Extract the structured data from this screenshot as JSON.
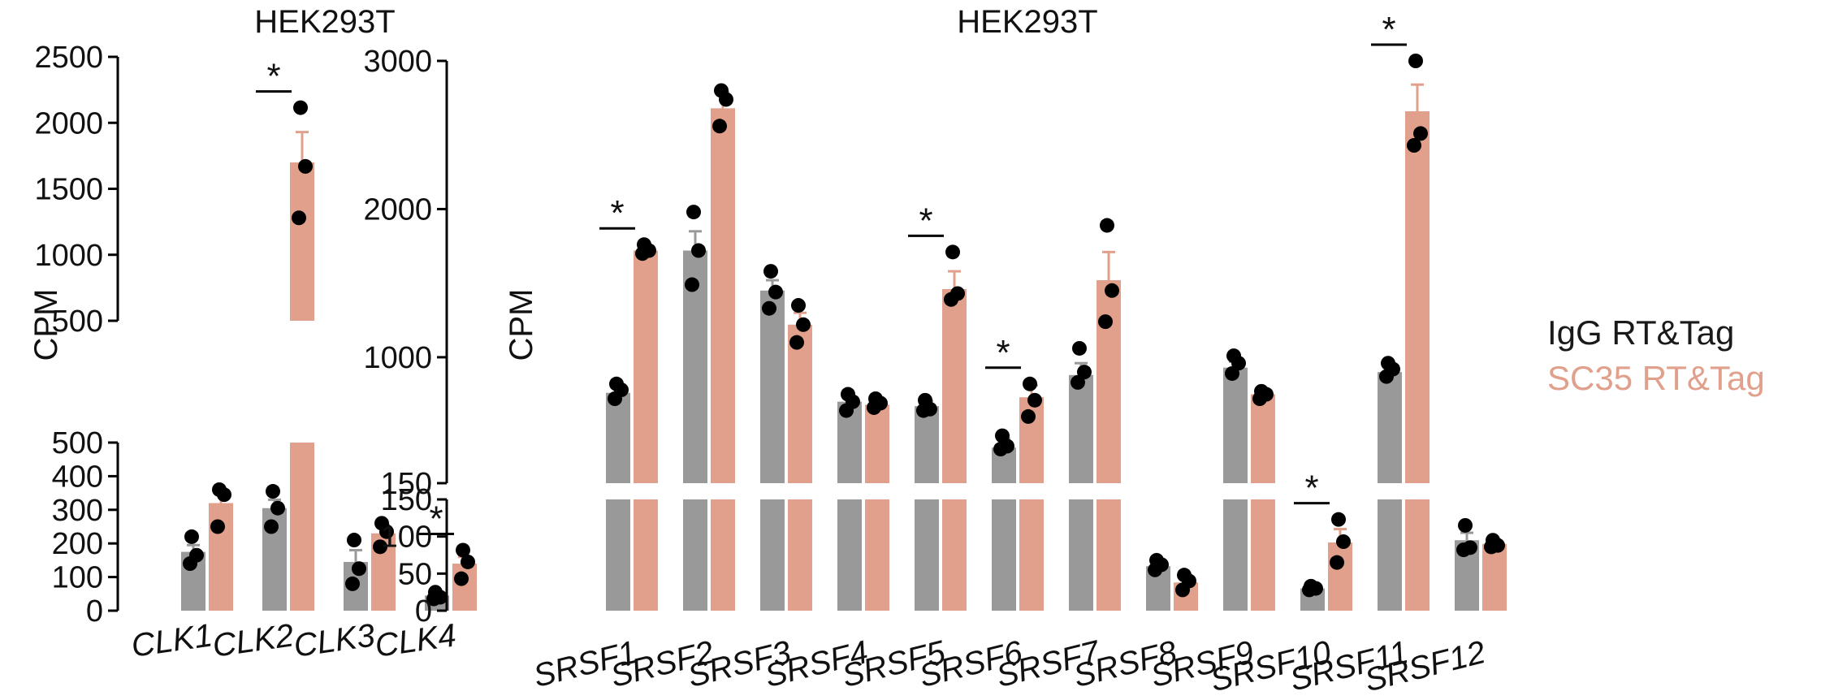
{
  "colors": {
    "igg": "#999999",
    "sc35": "#e0a08b",
    "dot": "#000000",
    "axis": "#000000"
  },
  "legend": {
    "igg_label": "IgG RT&Tag",
    "sc35_label": "SC35 RT&Tag"
  },
  "chart_data": [
    {
      "type": "bar",
      "title": "HEK293T",
      "ylabel": "CPM",
      "broken_axis": true,
      "lower_range": [
        0,
        500
      ],
      "upper_range": [
        500,
        2500
      ],
      "lower_ticks": [
        "0",
        "100",
        "200",
        "300",
        "400",
        "500"
      ],
      "upper_ticks": [
        "500",
        "1000",
        "1500",
        "2000",
        "2500"
      ],
      "categories": [
        "CLK1",
        "CLK2",
        "CLK3",
        "CLK4"
      ],
      "series": [
        {
          "name": "IgG RT&Tag",
          "values": [
            175,
            305,
            145,
            45
          ],
          "errors": [
            20,
            25,
            35,
            5
          ],
          "points": [
            [
              220,
              165,
              140
            ],
            [
              355,
              305,
              250
            ],
            [
              210,
              125,
              80
            ],
            [
              55,
              40,
              35
            ]
          ]
        },
        {
          "name": "SC35 RT&Tag",
          "values": [
            320,
            1700,
            230,
            140
          ],
          "errors": [
            30,
            230,
            25,
            20
          ],
          "points": [
            [
              360,
              345,
              250
            ],
            [
              2115,
              1670,
              1280
            ],
            [
              260,
              235,
              190
            ],
            [
              180,
              145,
              95
            ]
          ]
        }
      ],
      "significance": [
        "",
        "*",
        "",
        "*"
      ]
    },
    {
      "type": "bar",
      "title": "HEK293T",
      "ylabel": "CPM",
      "broken_axis": true,
      "lower_range": [
        0,
        150
      ],
      "upper_range": [
        150,
        3000
      ],
      "lower_ticks": [
        "0",
        "50",
        "100",
        "150"
      ],
      "upper_ticks": [
        "150",
        "1000",
        "2000",
        "3000"
      ],
      "categories": [
        "SRSF1",
        "SRSF2",
        "SRSF3",
        "SRSF4",
        "SRSF5",
        "SRSF6",
        "SRSF7",
        "SRSF8",
        "SRSF9",
        "SRSF10",
        "SRSF11",
        "SRSF12"
      ],
      "series": [
        {
          "name": "IgG RT&Tag",
          "values": [
            760,
            1720,
            1450,
            700,
            670,
            390,
            880,
            60,
            930,
            30,
            900,
            95
          ],
          "errors": [
            40,
            130,
            70,
            35,
            35,
            60,
            80,
            5,
            40,
            3,
            50,
            10
          ],
          "points": [
            [
              820,
              780,
              720
            ],
            [
              1980,
              1720,
              1490
            ],
            [
              1580,
              1440,
              1330
            ],
            [
              750,
              700,
              640
            ],
            [
              710,
              650,
              640
            ],
            [
              470,
              400,
              380
            ],
            [
              1060,
              900,
              830
            ],
            [
              68,
              62,
              55
            ],
            [
              1010,
              960,
              890
            ],
            [
              33,
              30,
              28
            ],
            [
              960,
              920,
              870
            ],
            [
              115,
              85,
              82
            ]
          ]
        },
        {
          "name": "SC35 RT&Tag",
          "values": [
            1720,
            2680,
            1220,
            680,
            1460,
            730,
            1520,
            38,
            750,
            92,
            2660,
            90
          ],
          "errors": [
            30,
            110,
            80,
            30,
            120,
            80,
            190,
            8,
            30,
            18,
            180,
            6
          ],
          "points": [
            [
              1760,
              1720,
              1700
            ],
            [
              2800,
              2740,
              2560
            ],
            [
              1350,
              1220,
              1100
            ],
            [
              720,
              690,
              660
            ],
            [
              1710,
              1430,
              1390
            ],
            [
              820,
              710,
              600
            ],
            [
              1890,
              1450,
              1240
            ],
            [
              48,
              40,
              28
            ],
            [
              770,
              750,
              720
            ],
            [
              123,
              93,
              65
            ],
            [
              3050,
              2510,
              2430
            ],
            [
              95,
              88,
              86
            ]
          ]
        }
      ],
      "significance": [
        "*",
        "",
        "",
        "",
        "*",
        "*",
        "",
        "",
        "",
        "*",
        "*",
        ""
      ]
    }
  ]
}
